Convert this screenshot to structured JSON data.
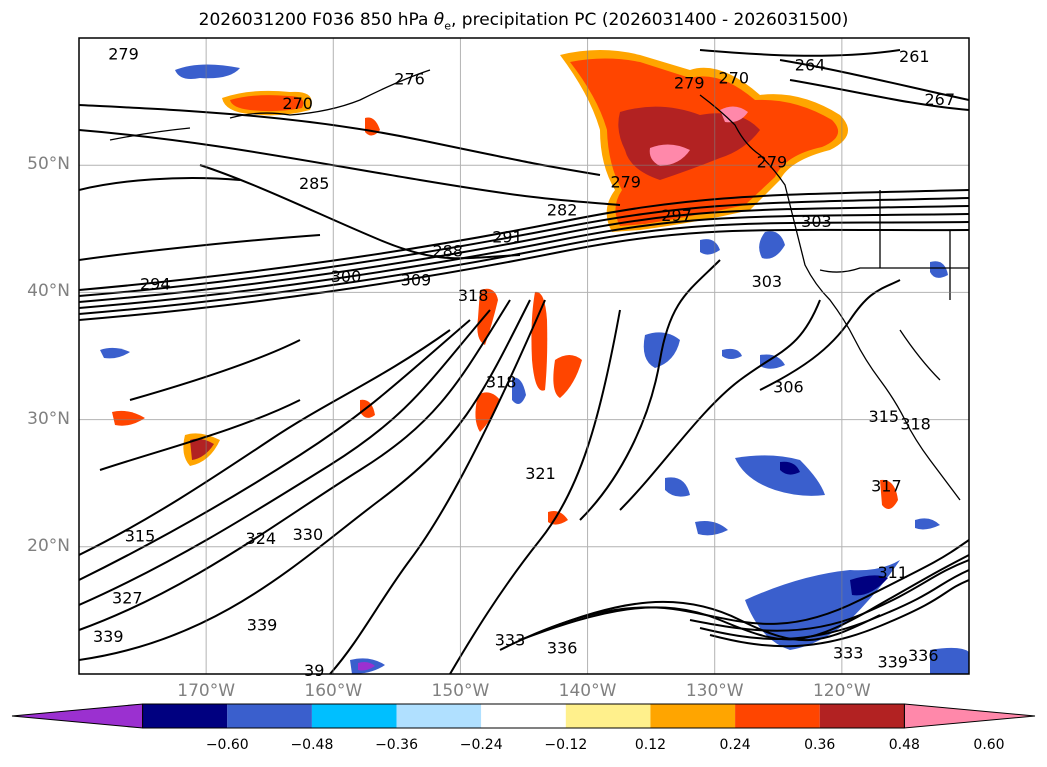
{
  "title": {
    "prefix": "2026031200 F036 850 hPa ",
    "theta": "θ",
    "sub": "e",
    "suffix": ", precipitation PC (2026031400 - 2026031500)"
  },
  "map": {
    "lat_ticks": [
      {
        "label": "50°N",
        "lat": 50
      },
      {
        "label": "40°N",
        "lat": 40
      },
      {
        "label": "30°N",
        "lat": 30
      },
      {
        "label": "20°N",
        "lat": 20
      }
    ],
    "lon_ticks": [
      {
        "label": "170°W",
        "lon": -170
      },
      {
        "label": "160°W",
        "lon": -160
      },
      {
        "label": "150°W",
        "lon": -150
      },
      {
        "label": "140°W",
        "lon": -140
      },
      {
        "label": "130°W",
        "lon": -130
      },
      {
        "label": "120°W",
        "lon": -120
      }
    ],
    "extent": {
      "lon_min": -180,
      "lon_max": -110,
      "lat_min": 10,
      "lat_max": 60
    }
  },
  "contour_labels": [
    {
      "text": "279",
      "lon": -176.5,
      "lat": 58.8
    },
    {
      "text": "276",
      "lon": -154.0,
      "lat": 56.8
    },
    {
      "text": "270",
      "lon": -162.8,
      "lat": 54.9
    },
    {
      "text": "279",
      "lon": -132.0,
      "lat": 56.5
    },
    {
      "text": "270",
      "lon": -128.5,
      "lat": 56.9
    },
    {
      "text": "264",
      "lon": -122.5,
      "lat": 57.9
    },
    {
      "text": "261",
      "lon": -114.3,
      "lat": 58.6
    },
    {
      "text": "267",
      "lon": -112.3,
      "lat": 55.2
    },
    {
      "text": "279",
      "lon": -125.5,
      "lat": 50.3
    },
    {
      "text": "285",
      "lon": -161.5,
      "lat": 48.6
    },
    {
      "text": "279",
      "lon": -137.0,
      "lat": 48.7
    },
    {
      "text": "282",
      "lon": -142.0,
      "lat": 46.5
    },
    {
      "text": "297",
      "lon": -133.0,
      "lat": 46.1
    },
    {
      "text": "303",
      "lon": -122.0,
      "lat": 45.6
    },
    {
      "text": "291",
      "lon": -146.3,
      "lat": 44.4
    },
    {
      "text": "288",
      "lon": -151.0,
      "lat": 43.3
    },
    {
      "text": "300",
      "lon": -159.0,
      "lat": 41.3
    },
    {
      "text": "309",
      "lon": -153.5,
      "lat": 41.0
    },
    {
      "text": "294",
      "lon": -174.0,
      "lat": 40.7
    },
    {
      "text": "318",
      "lon": -149.0,
      "lat": 39.8
    },
    {
      "text": "303",
      "lon": -125.9,
      "lat": 40.9
    },
    {
      "text": "318",
      "lon": -146.8,
      "lat": 33.0
    },
    {
      "text": "306",
      "lon": -124.2,
      "lat": 32.6
    },
    {
      "text": "315",
      "lon": -116.7,
      "lat": 30.3
    },
    {
      "text": "318",
      "lon": -114.2,
      "lat": 29.7
    },
    {
      "text": "321",
      "lon": -143.7,
      "lat": 25.8
    },
    {
      "text": "317",
      "lon": -116.5,
      "lat": 24.8
    },
    {
      "text": "315",
      "lon": -175.2,
      "lat": 20.9
    },
    {
      "text": "324",
      "lon": -165.7,
      "lat": 20.7
    },
    {
      "text": "330",
      "lon": -162.0,
      "lat": 21.0
    },
    {
      "text": "327",
      "lon": -176.2,
      "lat": 16.0
    },
    {
      "text": "311",
      "lon": -116.0,
      "lat": 18.0
    },
    {
      "text": "339",
      "lon": -177.7,
      "lat": 13.0
    },
    {
      "text": "339",
      "lon": -165.6,
      "lat": 13.9
    },
    {
      "text": "333",
      "lon": -146.1,
      "lat": 12.7
    },
    {
      "text": "336",
      "lon": -142.0,
      "lat": 12.1
    },
    {
      "text": "333",
      "lon": -119.5,
      "lat": 11.7
    },
    {
      "text": "339",
      "lon": -116.0,
      "lat": 11.0
    },
    {
      "text": "336",
      "lon": -113.6,
      "lat": 11.5
    },
    {
      "text": "39",
      "lon": -161.5,
      "lat": 10.3
    }
  ],
  "colorbar": {
    "levels": [
      "−0.60",
      "−0.48",
      "−0.36",
      "−0.24",
      "−0.12",
      "0.12",
      "0.24",
      "0.36",
      "0.48",
      "0.60"
    ],
    "colors": [
      "#9b30d0",
      "#000080",
      "#3a5fcd",
      "#00bfff",
      "#b0e0ff",
      "#ffffff",
      "#fff08c",
      "#ffa500",
      "#ff4500",
      "#b22222",
      "#ff88aa"
    ]
  }
}
